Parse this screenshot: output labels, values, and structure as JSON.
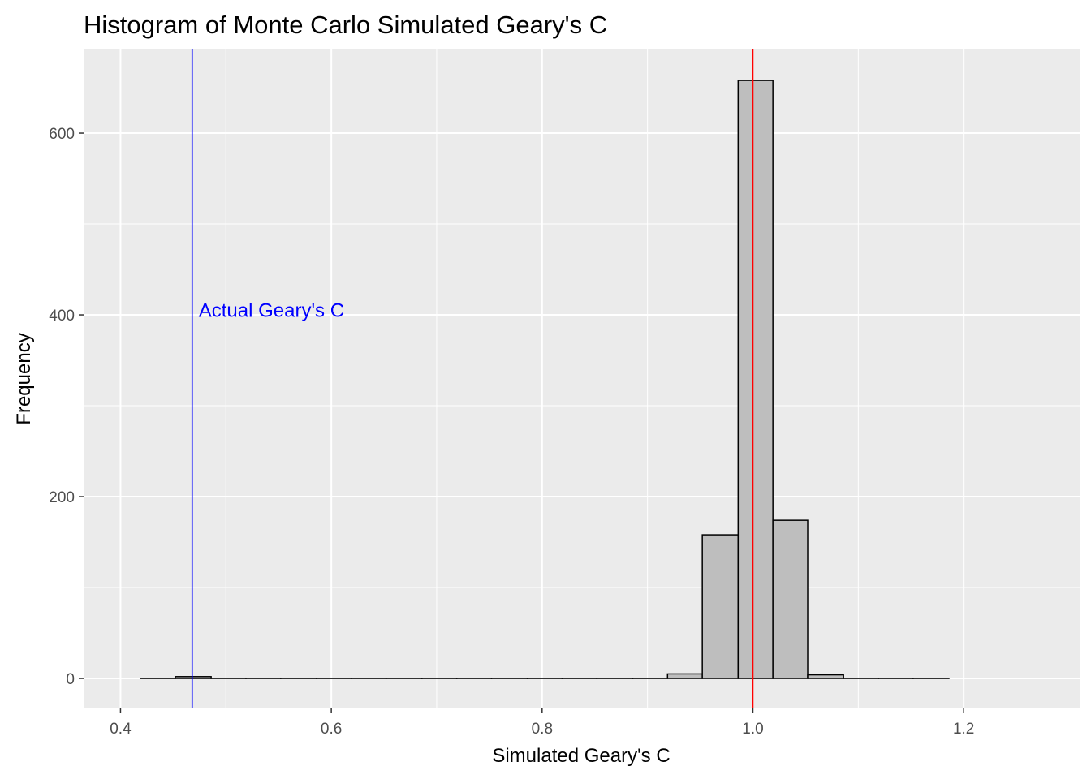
{
  "chart_data": {
    "type": "histogram",
    "title": "Histogram of Monte Carlo Simulated Geary's C",
    "xlabel": "Simulated Geary's C",
    "ylabel": "Frequency",
    "xlim": [
      0.365,
      1.31
    ],
    "ylim": [
      -33,
      692
    ],
    "x_ticks": [
      0.4,
      0.6,
      0.8,
      1.0,
      1.2
    ],
    "x_tick_labels": [
      "0.4",
      "0.6",
      "0.8",
      "1.0",
      "1.2"
    ],
    "y_ticks": [
      0,
      200,
      400,
      600
    ],
    "y_tick_labels": [
      "0",
      "200",
      "400",
      "600"
    ],
    "grid": true,
    "bin_width": 0.0333,
    "bins": [
      {
        "x0": 0.419,
        "x1": 0.452,
        "count": 0
      },
      {
        "x0": 0.452,
        "x1": 0.486,
        "count": 2
      },
      {
        "x0": 0.486,
        "x1": 0.519,
        "count": 0
      },
      {
        "x0": 0.519,
        "x1": 0.552,
        "count": 0
      },
      {
        "x0": 0.552,
        "x1": 0.586,
        "count": 0
      },
      {
        "x0": 0.586,
        "x1": 0.619,
        "count": 0
      },
      {
        "x0": 0.619,
        "x1": 0.652,
        "count": 0
      },
      {
        "x0": 0.652,
        "x1": 0.686,
        "count": 0
      },
      {
        "x0": 0.686,
        "x1": 0.719,
        "count": 0
      },
      {
        "x0": 0.719,
        "x1": 0.752,
        "count": 0
      },
      {
        "x0": 0.752,
        "x1": 0.786,
        "count": 0
      },
      {
        "x0": 0.786,
        "x1": 0.819,
        "count": 0
      },
      {
        "x0": 0.819,
        "x1": 0.852,
        "count": 0
      },
      {
        "x0": 0.852,
        "x1": 0.886,
        "count": 0
      },
      {
        "x0": 0.886,
        "x1": 0.919,
        "count": 0
      },
      {
        "x0": 0.919,
        "x1": 0.952,
        "count": 5
      },
      {
        "x0": 0.952,
        "x1": 0.986,
        "count": 158
      },
      {
        "x0": 0.986,
        "x1": 1.019,
        "count": 658
      },
      {
        "x0": 1.019,
        "x1": 1.052,
        "count": 174
      },
      {
        "x0": 1.052,
        "x1": 1.086,
        "count": 4
      },
      {
        "x0": 1.086,
        "x1": 1.119,
        "count": 0
      },
      {
        "x0": 1.119,
        "x1": 1.152,
        "count": 0
      },
      {
        "x0": 1.152,
        "x1": 1.186,
        "count": 0
      }
    ],
    "bar_fill": "#bebebe",
    "bar_outline": "#000000",
    "reference_lines": [
      {
        "x": 0.468,
        "color": "#0000ff",
        "label": "Actual Geary's C",
        "label_y": 405
      },
      {
        "x": 1.0,
        "color": "#ff0000"
      }
    ],
    "panel_background": "#ebebeb",
    "grid_color": "#ffffff"
  }
}
